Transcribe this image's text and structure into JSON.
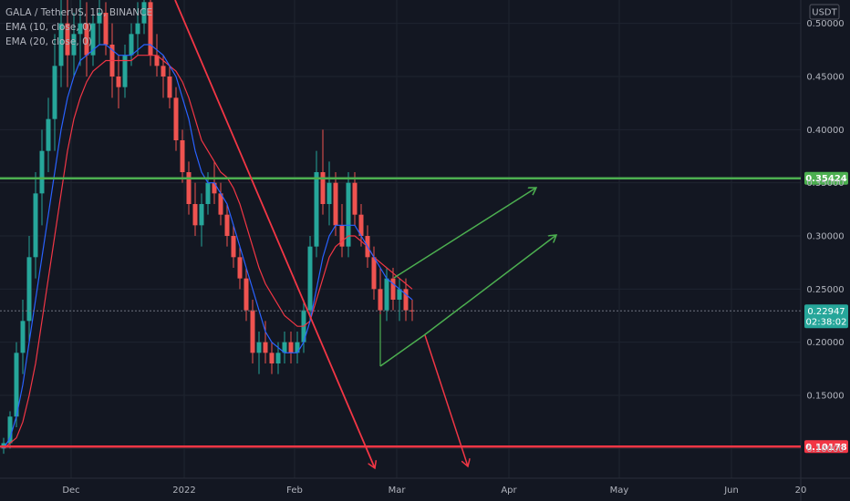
{
  "legend": {
    "symbol": "GALA / TetherUS, 1D, BINANCE",
    "ema10": "EMA (10, close, 0)",
    "ema20": "EMA (20, close, 0)"
  },
  "currency": "USDT",
  "colors": {
    "background": "#131722",
    "grid": "#1f2430",
    "up": "#26a69a",
    "down": "#ef5350",
    "ema10": "#2962ff",
    "ema20": "#f23645",
    "support_green": "#4caf50",
    "resistance_red": "#f23645",
    "price_badge": "#26a69a"
  },
  "chart_data": {
    "type": "candlestick",
    "y_axis_labels": [
      "0.50000",
      "0.45000",
      "0.40000",
      "0.35000",
      "0.30000",
      "0.25000",
      "0.20000",
      "0.15000",
      "0.10000"
    ],
    "y_axis_values": [
      0.5,
      0.45,
      0.4,
      0.35,
      0.3,
      0.25,
      0.2,
      0.15,
      0.1
    ],
    "x_axis_labels": [
      "Dec",
      "2022",
      "Feb",
      "Mar",
      "Apr",
      "May",
      "Jun",
      "20"
    ],
    "ylim": [
      0.072,
      0.522
    ],
    "horizontal_levels": [
      {
        "label": "0.35424",
        "value": 0.35424,
        "color": "#4caf50"
      },
      {
        "label": "0.10178",
        "value": 0.10178,
        "color": "#f23645"
      }
    ],
    "current_price": {
      "label": "0.22947",
      "value": 0.22947,
      "countdown": "02:38:02"
    },
    "candles": [
      {
        "o": 0.1,
        "h": 0.11,
        "l": 0.095,
        "c": 0.105
      },
      {
        "o": 0.105,
        "h": 0.135,
        "l": 0.1,
        "c": 0.13
      },
      {
        "o": 0.13,
        "h": 0.2,
        "l": 0.12,
        "c": 0.19
      },
      {
        "o": 0.19,
        "h": 0.24,
        "l": 0.17,
        "c": 0.22
      },
      {
        "o": 0.22,
        "h": 0.3,
        "l": 0.2,
        "c": 0.28
      },
      {
        "o": 0.28,
        "h": 0.36,
        "l": 0.26,
        "c": 0.34
      },
      {
        "o": 0.34,
        "h": 0.4,
        "l": 0.31,
        "c": 0.38
      },
      {
        "o": 0.38,
        "h": 0.43,
        "l": 0.36,
        "c": 0.41
      },
      {
        "o": 0.41,
        "h": 0.49,
        "l": 0.38,
        "c": 0.46
      },
      {
        "o": 0.46,
        "h": 0.55,
        "l": 0.44,
        "c": 0.5
      },
      {
        "o": 0.5,
        "h": 0.53,
        "l": 0.44,
        "c": 0.47
      },
      {
        "o": 0.47,
        "h": 0.51,
        "l": 0.45,
        "c": 0.49
      },
      {
        "o": 0.49,
        "h": 0.53,
        "l": 0.46,
        "c": 0.5
      },
      {
        "o": 0.5,
        "h": 0.52,
        "l": 0.45,
        "c": 0.47
      },
      {
        "o": 0.47,
        "h": 0.51,
        "l": 0.46,
        "c": 0.5
      },
      {
        "o": 0.5,
        "h": 0.53,
        "l": 0.48,
        "c": 0.51
      },
      {
        "o": 0.51,
        "h": 0.52,
        "l": 0.47,
        "c": 0.48
      },
      {
        "o": 0.48,
        "h": 0.5,
        "l": 0.43,
        "c": 0.45
      },
      {
        "o": 0.45,
        "h": 0.47,
        "l": 0.42,
        "c": 0.44
      },
      {
        "o": 0.44,
        "h": 0.48,
        "l": 0.43,
        "c": 0.47
      },
      {
        "o": 0.47,
        "h": 0.5,
        "l": 0.46,
        "c": 0.49
      },
      {
        "o": 0.49,
        "h": 0.52,
        "l": 0.47,
        "c": 0.5
      },
      {
        "o": 0.5,
        "h": 0.54,
        "l": 0.49,
        "c": 0.52
      },
      {
        "o": 0.52,
        "h": 0.53,
        "l": 0.46,
        "c": 0.47
      },
      {
        "o": 0.47,
        "h": 0.49,
        "l": 0.45,
        "c": 0.46
      },
      {
        "o": 0.46,
        "h": 0.47,
        "l": 0.43,
        "c": 0.45
      },
      {
        "o": 0.45,
        "h": 0.46,
        "l": 0.42,
        "c": 0.43
      },
      {
        "o": 0.43,
        "h": 0.44,
        "l": 0.38,
        "c": 0.39
      },
      {
        "o": 0.39,
        "h": 0.4,
        "l": 0.35,
        "c": 0.36
      },
      {
        "o": 0.36,
        "h": 0.37,
        "l": 0.32,
        "c": 0.33
      },
      {
        "o": 0.33,
        "h": 0.35,
        "l": 0.3,
        "c": 0.31
      },
      {
        "o": 0.31,
        "h": 0.34,
        "l": 0.29,
        "c": 0.33
      },
      {
        "o": 0.33,
        "h": 0.36,
        "l": 0.32,
        "c": 0.35
      },
      {
        "o": 0.35,
        "h": 0.37,
        "l": 0.33,
        "c": 0.34
      },
      {
        "o": 0.34,
        "h": 0.35,
        "l": 0.31,
        "c": 0.32
      },
      {
        "o": 0.32,
        "h": 0.33,
        "l": 0.29,
        "c": 0.3
      },
      {
        "o": 0.3,
        "h": 0.31,
        "l": 0.27,
        "c": 0.28
      },
      {
        "o": 0.28,
        "h": 0.29,
        "l": 0.25,
        "c": 0.26
      },
      {
        "o": 0.26,
        "h": 0.27,
        "l": 0.22,
        "c": 0.23
      },
      {
        "o": 0.23,
        "h": 0.24,
        "l": 0.18,
        "c": 0.19
      },
      {
        "o": 0.19,
        "h": 0.21,
        "l": 0.17,
        "c": 0.2
      },
      {
        "o": 0.2,
        "h": 0.22,
        "l": 0.18,
        "c": 0.19
      },
      {
        "o": 0.19,
        "h": 0.2,
        "l": 0.17,
        "c": 0.18
      },
      {
        "o": 0.18,
        "h": 0.2,
        "l": 0.17,
        "c": 0.19
      },
      {
        "o": 0.19,
        "h": 0.21,
        "l": 0.18,
        "c": 0.2
      },
      {
        "o": 0.2,
        "h": 0.21,
        "l": 0.18,
        "c": 0.19
      },
      {
        "o": 0.19,
        "h": 0.21,
        "l": 0.18,
        "c": 0.2
      },
      {
        "o": 0.2,
        "h": 0.24,
        "l": 0.19,
        "c": 0.23
      },
      {
        "o": 0.23,
        "h": 0.3,
        "l": 0.22,
        "c": 0.29
      },
      {
        "o": 0.29,
        "h": 0.38,
        "l": 0.28,
        "c": 0.36
      },
      {
        "o": 0.36,
        "h": 0.4,
        "l": 0.32,
        "c": 0.33
      },
      {
        "o": 0.33,
        "h": 0.37,
        "l": 0.31,
        "c": 0.35
      },
      {
        "o": 0.35,
        "h": 0.36,
        "l": 0.3,
        "c": 0.31
      },
      {
        "o": 0.31,
        "h": 0.33,
        "l": 0.28,
        "c": 0.29
      },
      {
        "o": 0.29,
        "h": 0.36,
        "l": 0.28,
        "c": 0.35
      },
      {
        "o": 0.35,
        "h": 0.36,
        "l": 0.31,
        "c": 0.32
      },
      {
        "o": 0.32,
        "h": 0.33,
        "l": 0.29,
        "c": 0.3
      },
      {
        "o": 0.3,
        "h": 0.31,
        "l": 0.27,
        "c": 0.28
      },
      {
        "o": 0.28,
        "h": 0.29,
        "l": 0.24,
        "c": 0.25
      },
      {
        "o": 0.25,
        "h": 0.27,
        "l": 0.2,
        "c": 0.23
      },
      {
        "o": 0.23,
        "h": 0.27,
        "l": 0.22,
        "c": 0.26
      },
      {
        "o": 0.26,
        "h": 0.27,
        "l": 0.23,
        "c": 0.24
      },
      {
        "o": 0.24,
        "h": 0.26,
        "l": 0.22,
        "c": 0.25
      },
      {
        "o": 0.25,
        "h": 0.26,
        "l": 0.22,
        "c": 0.23
      },
      {
        "o": 0.23,
        "h": 0.24,
        "l": 0.22,
        "c": 0.229
      }
    ],
    "candle_x_range": [
      4,
      452
    ],
    "ema10": [
      0.1,
      0.11,
      0.13,
      0.16,
      0.2,
      0.24,
      0.28,
      0.32,
      0.36,
      0.4,
      0.43,
      0.45,
      0.465,
      0.47,
      0.475,
      0.48,
      0.48,
      0.475,
      0.47,
      0.47,
      0.47,
      0.475,
      0.48,
      0.48,
      0.475,
      0.47,
      0.46,
      0.45,
      0.43,
      0.41,
      0.38,
      0.36,
      0.35,
      0.35,
      0.34,
      0.33,
      0.31,
      0.29,
      0.27,
      0.25,
      0.23,
      0.21,
      0.2,
      0.195,
      0.19,
      0.19,
      0.19,
      0.2,
      0.22,
      0.25,
      0.28,
      0.3,
      0.31,
      0.31,
      0.31,
      0.31,
      0.3,
      0.29,
      0.28,
      0.27,
      0.26,
      0.255,
      0.25,
      0.245,
      0.24
    ],
    "ema20": [
      0.1,
      0.105,
      0.11,
      0.125,
      0.15,
      0.18,
      0.22,
      0.26,
      0.3,
      0.34,
      0.38,
      0.41,
      0.43,
      0.445,
      0.455,
      0.46,
      0.465,
      0.465,
      0.465,
      0.465,
      0.465,
      0.47,
      0.47,
      0.47,
      0.47,
      0.465,
      0.46,
      0.455,
      0.445,
      0.43,
      0.41,
      0.39,
      0.38,
      0.37,
      0.36,
      0.355,
      0.345,
      0.33,
      0.31,
      0.29,
      0.27,
      0.255,
      0.245,
      0.235,
      0.225,
      0.22,
      0.215,
      0.215,
      0.22,
      0.24,
      0.26,
      0.28,
      0.29,
      0.295,
      0.3,
      0.3,
      0.295,
      0.29,
      0.28,
      0.275,
      0.27,
      0.265,
      0.26,
      0.255,
      0.25
    ]
  }
}
